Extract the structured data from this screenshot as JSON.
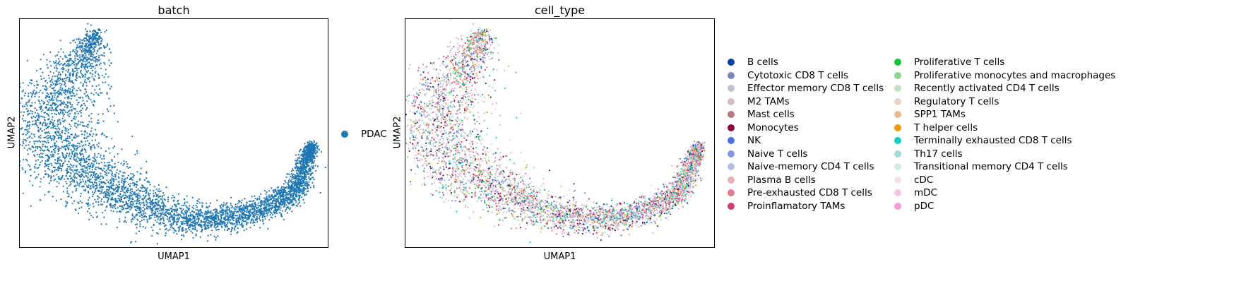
{
  "chart_data": [
    {
      "type": "scatter",
      "title": "batch",
      "xlabel": "UMAP1",
      "ylabel": "UMAP2",
      "grid": false,
      "ticks": false,
      "legend": {
        "placement": "right",
        "entries": [
          {
            "name": "PDAC",
            "color": "#1f77b4"
          }
        ]
      }
    },
    {
      "type": "scatter",
      "title": "cell_type",
      "xlabel": "UMAP1",
      "ylabel": "UMAP2",
      "grid": false,
      "ticks": false,
      "legend": {
        "placement": "right",
        "columns": 2,
        "entries": [
          {
            "name": "B cells",
            "color": "#023fa5"
          },
          {
            "name": "Cytotoxic CD8 T cells",
            "color": "#7d87b9"
          },
          {
            "name": "Effector memory CD8 T cells",
            "color": "#bec1d4"
          },
          {
            "name": "M2 TAMs",
            "color": "#d6bcc0"
          },
          {
            "name": "Mast cells",
            "color": "#bb7784"
          },
          {
            "name": "Monocytes",
            "color": "#8e063b"
          },
          {
            "name": "NK",
            "color": "#4a6fe3"
          },
          {
            "name": "Naive T cells",
            "color": "#8595e1"
          },
          {
            "name": "Naive-memory CD4 T cells",
            "color": "#b5bbe3"
          },
          {
            "name": "Plasma B cells",
            "color": "#e6afb9"
          },
          {
            "name": "Pre-exhausted CD8 T cells",
            "color": "#e07b91"
          },
          {
            "name": "Proinflamatory TAMs",
            "color": "#d33f6a"
          },
          {
            "name": "Proliferative T cells",
            "color": "#11c638"
          },
          {
            "name": "Proliferative monocytes and macrophages",
            "color": "#8dd593"
          },
          {
            "name": "Recently activated CD4 T cells",
            "color": "#c6dec7"
          },
          {
            "name": "Regulatory T cells",
            "color": "#ead3c6"
          },
          {
            "name": "SPP1 TAMs",
            "color": "#f0b98d"
          },
          {
            "name": "T helper cells",
            "color": "#ef9708"
          },
          {
            "name": "Terminally exhausted CD8 T cells",
            "color": "#0fcfc0"
          },
          {
            "name": "Th17 cells",
            "color": "#9cded6"
          },
          {
            "name": "Transitional memory CD4 T cells",
            "color": "#d5eae7"
          },
          {
            "name": "cDC",
            "color": "#f3e1eb"
          },
          {
            "name": "mDC",
            "color": "#f6c4e1"
          },
          {
            "name": "pDC",
            "color": "#f79cd4"
          }
        ]
      }
    }
  ]
}
